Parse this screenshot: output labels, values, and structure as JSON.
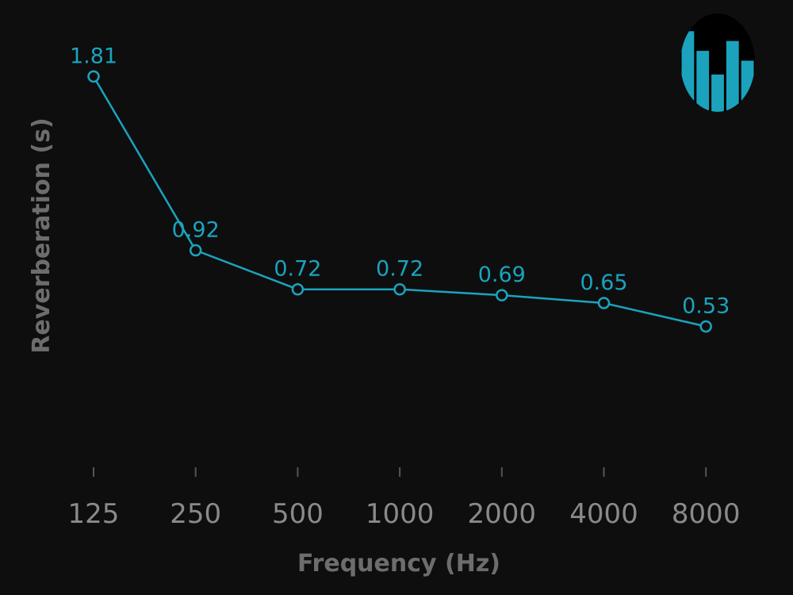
{
  "colors": {
    "background": "#0e0e0f",
    "accent": "#1ba3bd",
    "tick": "#8a8a8a",
    "axis_title": "#6d6d6d"
  },
  "logo": {
    "icon": "equalizer-bars-logo",
    "bars": [
      0.82,
      0.62,
      0.38,
      0.72,
      0.52
    ]
  },
  "chart_data": {
    "type": "line",
    "categories": [
      "125",
      "250",
      "500",
      "1000",
      "2000",
      "4000",
      "8000"
    ],
    "values": [
      1.81,
      0.92,
      0.72,
      0.72,
      0.69,
      0.65,
      0.53
    ],
    "data_labels": [
      "1.81",
      "0.92",
      "0.72",
      "0.72",
      "0.69",
      "0.65",
      "0.53"
    ],
    "xlabel": "Frequency (Hz)",
    "ylabel": "Reverberation (s)",
    "ylim": [
      0,
      1.95
    ],
    "grid": false,
    "markers": "open-circle"
  }
}
